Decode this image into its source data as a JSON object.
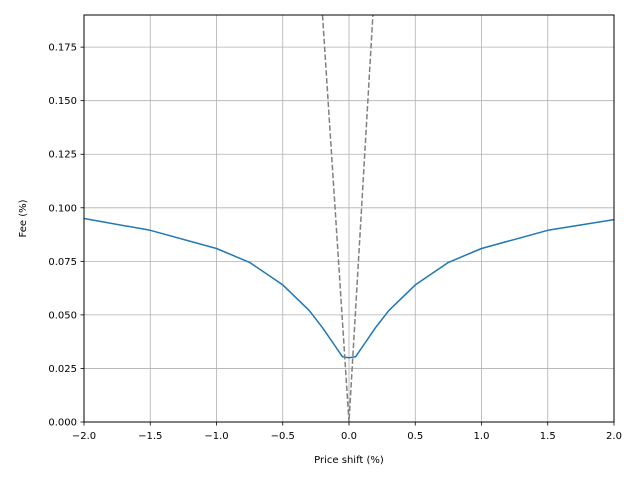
{
  "chart_data": {
    "type": "line",
    "xlabel": "Price shift (%)",
    "ylabel": "Fee (%)",
    "xlim": [
      -2.0,
      2.0
    ],
    "ylim": [
      0.0,
      0.19
    ],
    "grid": true,
    "x_ticks": [
      "−2.0",
      "−1.5",
      "−1.0",
      "−0.5",
      "0.0",
      "0.5",
      "1.0",
      "1.5",
      "2.0"
    ],
    "x_tick_values": [
      -2.0,
      -1.5,
      -1.0,
      -0.5,
      0.0,
      0.5,
      1.0,
      1.5,
      2.0
    ],
    "y_ticks": [
      "0.000",
      "0.025",
      "0.050",
      "0.075",
      "0.100",
      "0.125",
      "0.150",
      "0.175"
    ],
    "y_tick_values": [
      0.0,
      0.025,
      0.05,
      0.075,
      0.1,
      0.125,
      0.15,
      0.175
    ],
    "series": [
      {
        "color": "#1f77b4",
        "style": "solid",
        "x": [
          -2.0,
          -1.5,
          -1.0,
          -0.75,
          -0.5,
          -0.3,
          -0.2,
          -0.1,
          -0.05,
          0.0,
          0.05,
          0.1,
          0.2,
          0.3,
          0.5,
          0.75,
          1.0,
          1.5,
          2.0
        ],
        "values": [
          0.095,
          0.0895,
          0.081,
          0.0745,
          0.064,
          0.052,
          0.044,
          0.035,
          0.0305,
          0.03,
          0.0305,
          0.035,
          0.044,
          0.052,
          0.064,
          0.0745,
          0.081,
          0.0895,
          0.0945
        ]
      },
      {
        "color": "#808080",
        "style": "dashed",
        "x": [
          -0.2,
          0.0,
          0.18
        ],
        "values": [
          0.19,
          0.0,
          0.19
        ]
      }
    ]
  }
}
